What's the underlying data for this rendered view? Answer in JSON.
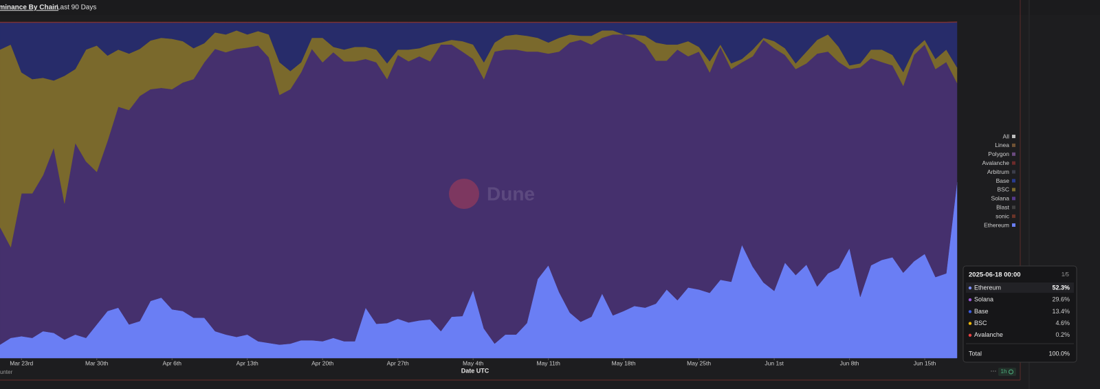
{
  "header": {
    "title": "Dominance By Chain",
    "subtitle": "Last 90 Days",
    "footer_left": "unter"
  },
  "chart_data": {
    "type": "stacked_area_percent",
    "watermark": "Dune",
    "xlabel": "Date UTC",
    "x": [
      "2025-03-21",
      "2025-03-22",
      "2025-03-23",
      "2025-03-24",
      "2025-03-25",
      "2025-03-26",
      "2025-03-27",
      "2025-03-28",
      "2025-03-29",
      "2025-03-30",
      "2025-03-31",
      "2025-04-01",
      "2025-04-02",
      "2025-04-03",
      "2025-04-04",
      "2025-04-05",
      "2025-04-06",
      "2025-04-07",
      "2025-04-08",
      "2025-04-09",
      "2025-04-10",
      "2025-04-11",
      "2025-04-12",
      "2025-04-13",
      "2025-04-14",
      "2025-04-15",
      "2025-04-16",
      "2025-04-17",
      "2025-04-18",
      "2025-04-19",
      "2025-04-20",
      "2025-04-21",
      "2025-04-22",
      "2025-04-23",
      "2025-04-24",
      "2025-04-25",
      "2025-04-26",
      "2025-04-27",
      "2025-04-28",
      "2025-04-29",
      "2025-04-30",
      "2025-05-01",
      "2025-05-02",
      "2025-05-03",
      "2025-05-04",
      "2025-05-05",
      "2025-05-06",
      "2025-05-07",
      "2025-05-08",
      "2025-05-09",
      "2025-05-10",
      "2025-05-11",
      "2025-05-12",
      "2025-05-13",
      "2025-05-14",
      "2025-05-15",
      "2025-05-16",
      "2025-05-17",
      "2025-05-18",
      "2025-05-19",
      "2025-05-20",
      "2025-05-21",
      "2025-05-22",
      "2025-05-23",
      "2025-05-24",
      "2025-05-25",
      "2025-05-26",
      "2025-05-27",
      "2025-05-28",
      "2025-05-29",
      "2025-05-30",
      "2025-05-31",
      "2025-06-01",
      "2025-06-02",
      "2025-06-03",
      "2025-06-04",
      "2025-06-05",
      "2025-06-06",
      "2025-06-07",
      "2025-06-08",
      "2025-06-09",
      "2025-06-10",
      "2025-06-11",
      "2025-06-12",
      "2025-06-13",
      "2025-06-14",
      "2025-06-15",
      "2025-06-16",
      "2025-06-17",
      "2025-06-18"
    ],
    "xlim": [
      "2025-03-21",
      "2025-06-18"
    ],
    "xticks": [
      {
        "value": "2025-03-23",
        "label": "Mar 23rd"
      },
      {
        "value": "2025-03-30",
        "label": "Mar 30th"
      },
      {
        "value": "2025-04-06",
        "label": "Apr 6th"
      },
      {
        "value": "2025-04-13",
        "label": "Apr 13th"
      },
      {
        "value": "2025-04-20",
        "label": "Apr 20th"
      },
      {
        "value": "2025-04-27",
        "label": "Apr 27th"
      },
      {
        "value": "2025-05-04",
        "label": "May 4th"
      },
      {
        "value": "2025-05-11",
        "label": "May 11th"
      },
      {
        "value": "2025-05-18",
        "label": "May 18th"
      },
      {
        "value": "2025-05-25",
        "label": "May 25th"
      },
      {
        "value": "2025-06-01",
        "label": "Jun 1st"
      },
      {
        "value": "2025-06-08",
        "label": "Jun 8th"
      },
      {
        "value": "2025-06-15",
        "label": "Jun 15th"
      }
    ],
    "ylim": [
      0,
      100
    ],
    "series": [
      {
        "name": "Ethereum",
        "color": "#6a7ef4",
        "values": [
          4,
          6,
          6.5,
          6,
          8,
          7.5,
          5.5,
          7,
          6,
          10,
          14,
          15,
          10,
          11,
          17,
          18,
          14.5,
          14,
          12,
          12,
          8,
          7,
          6.3,
          7,
          5,
          4.5,
          4,
          4.3,
          5.3,
          5.3,
          5,
          6,
          5,
          5,
          15,
          10.2,
          10.4,
          11.7,
          10.6,
          11.2,
          11.5,
          8,
          12.3,
          12.5,
          20.2,
          8.8,
          4.3,
          7,
          7,
          10.4,
          23.5,
          27.6,
          19.6,
          13.5,
          10.8,
          12.3,
          19.2,
          12.7,
          14,
          15.5,
          15,
          16.2,
          20.4,
          17.2,
          21,
          20.4,
          19.4,
          23.3,
          22.7,
          33.7,
          27.2,
          22.5,
          20,
          28.4,
          24.7,
          27.8,
          21.3,
          25.2,
          26.8,
          32.7,
          18.2,
          27.6,
          29.2,
          30,
          25.4,
          28.8,
          31,
          24.1,
          25.2,
          52.3
        ]
      },
      {
        "name": "Solana",
        "color": "#45306d",
        "values": [
          35,
          27,
          42.5,
          43,
          46.4,
          55.1,
          40.5,
          57,
          52.5,
          45.4,
          50.6,
          59.8,
          63.8,
          67,
          63,
          62.4,
          65.5,
          68,
          71,
          76,
          84,
          84,
          85.7,
          85.4,
          88,
          85,
          74.3,
          75.7,
          79.7,
          86.7,
          83,
          85,
          83.3,
          83.3,
          74,
          77.8,
          72.6,
          78.5,
          77.7,
          78.6,
          76.8,
          85.3,
          81,
          78.7,
          68.8,
          74.2,
          86.9,
          84.8,
          84.8,
          80.8,
          67.7,
          63,
          71.6,
          80.4,
          83.9,
          81,
          76.1,
          83.6,
          82.3,
          79.8,
          78.3,
          72.3,
          68.1,
          74.6,
          68.8,
          70.8,
          65.6,
          69.3,
          63.3,
          54.3,
          62.6,
          72.2,
          72.2,
          61.8,
          61.3,
          59.9,
          69.3,
          66,
          61.3,
          53.3,
          68.3,
          61.6,
          58.9,
          57.1,
          55.6,
          61.4,
          62.3,
          61.9,
          62.9,
          29.6
        ]
      },
      {
        "name": "BSC",
        "color": "#7a692c",
        "values": [
          52.8,
          60.3,
          36,
          34,
          29,
          20,
          38,
          22,
          33.3,
          37.6,
          25.4,
          17,
          16.8,
          14,
          14.5,
          14.9,
          15,
          12.3,
          9.2,
          5.7,
          4.9,
          5.3,
          5.5,
          3.9,
          4.3,
          6.8,
          9.7,
          5.4,
          3,
          3.3,
          7.3,
          1.6,
          3.5,
          4.3,
          3.6,
          3.8,
          4.7,
          1.6,
          3.5,
          2.4,
          5,
          0.6,
          1.4,
          3.1,
          4.3,
          5,
          2.7,
          4.1,
          4.5,
          4.7,
          4.1,
          3.3,
          4.1,
          2.4,
          1.2,
          2.6,
          2.2,
          1.2,
          0,
          1,
          2.6,
          5.4,
          4.8,
          1.5,
          4.5,
          1.4,
          3.3,
          0.7,
          1.7,
          1,
          2,
          0.6,
          2.1,
          2,
          1.7,
          3.5,
          4.1,
          5.1,
          4.5,
          1.1,
          1.2,
          2.6,
          3.7,
          3.1,
          4.1,
          1.6,
          1.4,
          3,
          3.7,
          4.6
        ]
      },
      {
        "name": "Base",
        "color": "#272c6a",
        "values": [
          8,
          6.5,
          14.8,
          16.8,
          16.4,
          17.2,
          15.8,
          13.8,
          8,
          6.8,
          9.8,
          8,
          9.2,
          7.8,
          5.3,
          4.5,
          4.8,
          5.5,
          7.6,
          6.1,
          2.9,
          3.5,
          2.3,
          3.5,
          2.5,
          3.5,
          11.8,
          14.4,
          11.8,
          4.5,
          4.5,
          7.2,
          8,
          7.2,
          7.2,
          8,
          12.1,
          8,
          8,
          7.6,
          6.5,
          5.9,
          5.1,
          5.5,
          6.5,
          11.8,
          5.9,
          3.9,
          3.5,
          3.9,
          4.5,
          5.9,
          4.5,
          3.5,
          3.9,
          3.9,
          2.3,
          2.3,
          3.5,
          3.5,
          3.9,
          5.9,
          6.5,
          6.5,
          5.5,
          7.2,
          11.5,
          6.5,
          12.1,
          10.8,
          8,
          4.5,
          5.5,
          7.6,
          12.1,
          8.6,
          5.1,
          3.5,
          7.2,
          12.7,
          12.1,
          8,
          8,
          9.6,
          14.7,
          8,
          5.1,
          10.8,
          8,
          13.4
        ]
      },
      {
        "name": "Avalanche",
        "color": "#7e3232",
        "values": [
          0.2,
          0.2,
          0.2,
          0.2,
          0.2,
          0.2,
          0.2,
          0.2,
          0.2,
          0.2,
          0.2,
          0.2,
          0.2,
          0.2,
          0.2,
          0.2,
          0.2,
          0.2,
          0.2,
          0.2,
          0.2,
          0.2,
          0.2,
          0.2,
          0.2,
          0.2,
          0.2,
          0.2,
          0.2,
          0.2,
          0.2,
          0.2,
          0.2,
          0.2,
          0.2,
          0.2,
          0.2,
          0.2,
          0.2,
          0.2,
          0.2,
          0.2,
          0.2,
          0.2,
          0.2,
          0.2,
          0.2,
          0.2,
          0.2,
          0.2,
          0.2,
          0.2,
          0.2,
          0.2,
          0.2,
          0.2,
          0.2,
          0.2,
          0.2,
          0.2,
          0.2,
          0.2,
          0.2,
          0.2,
          0.2,
          0.2,
          0.2,
          0.2,
          0.2,
          0.2,
          0.2,
          0.2,
          0.2,
          0.2,
          0.2,
          0.2,
          0.2,
          0.2,
          0.2,
          0.2,
          0.2,
          0.2,
          0.2,
          0.2,
          0.2,
          0.2,
          0.2,
          0.2,
          0.2,
          0.2
        ]
      }
    ],
    "legend": [
      {
        "name": "All",
        "color": "#bdbdbd"
      },
      {
        "name": "Linea",
        "color": "#6f5234"
      },
      {
        "name": "Polygon",
        "color": "#6a4a7e"
      },
      {
        "name": "Avalanche",
        "color": "#6b2a2a"
      },
      {
        "name": "Arbitrum",
        "color": "#3b3d4a"
      },
      {
        "name": "Base",
        "color": "#283b8f"
      },
      {
        "name": "BSC",
        "color": "#7a692c"
      },
      {
        "name": "Solana",
        "color": "#563a8a"
      },
      {
        "name": "Blast",
        "color": "#404040"
      },
      {
        "name": "sonic",
        "color": "#6a3428"
      },
      {
        "name": "Ethereum",
        "color": "#6a7ef4"
      }
    ],
    "tooltip": {
      "title": "2025-06-18 00:00",
      "page": "1/5",
      "rows": [
        {
          "name": "Ethereum",
          "color": "#7b8ef5",
          "value": 52.3,
          "label": "52.3%"
        },
        {
          "name": "Solana",
          "color": "#9b59d6",
          "value": 29.6,
          "label": "29.6%"
        },
        {
          "name": "Base",
          "color": "#3b5bdb",
          "value": 13.4,
          "label": "13.4%"
        },
        {
          "name": "BSC",
          "color": "#f0b90b",
          "value": 4.6,
          "label": "4.6%"
        },
        {
          "name": "Avalanche",
          "color": "#e84142",
          "value": 0.2,
          "label": "0.2%"
        }
      ],
      "total": {
        "name": "Total",
        "value": 100,
        "label": "100.0%"
      }
    },
    "interval": "1h"
  }
}
